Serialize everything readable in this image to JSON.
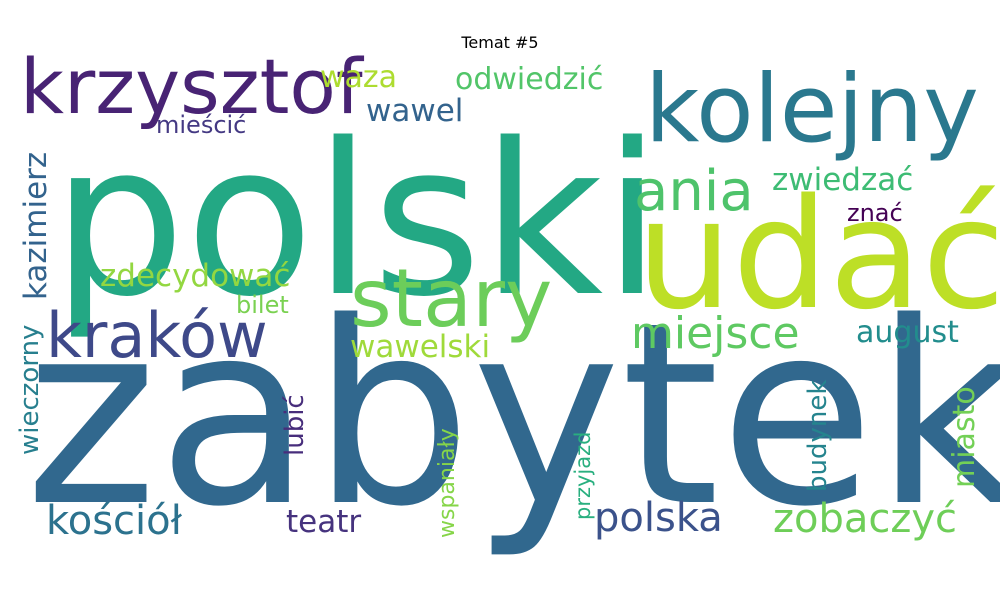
{
  "chart_data": {
    "type": "wordcloud",
    "title": "Temat #5",
    "words": [
      {
        "text": "zabytek",
        "weight": 1.0,
        "color": "#31688e"
      },
      {
        "text": "polski",
        "weight": 0.95,
        "color": "#23a884"
      },
      {
        "text": "udać",
        "weight": 0.82,
        "color": "#bddf26"
      },
      {
        "text": "kolejny",
        "weight": 0.55,
        "color": "#2a788e"
      },
      {
        "text": "krzysztof",
        "weight": 0.48,
        "color": "#482374"
      },
      {
        "text": "stary",
        "weight": 0.52,
        "color": "#6ccd5a"
      },
      {
        "text": "kraków",
        "weight": 0.42,
        "color": "#3e4989"
      },
      {
        "text": "ania",
        "weight": 0.33,
        "color": "#4ec36b"
      },
      {
        "text": "miejsce",
        "weight": 0.33,
        "color": "#5ec962"
      },
      {
        "text": "zobaczyć",
        "weight": 0.28,
        "color": "#6ece58"
      },
      {
        "text": "polska",
        "weight": 0.28,
        "color": "#3b528b"
      },
      {
        "text": "kościół",
        "weight": 0.28,
        "color": "#2c728e"
      },
      {
        "text": "odwiedzić",
        "weight": 0.22,
        "color": "#52c569"
      },
      {
        "text": "waza",
        "weight": 0.22,
        "color": "#addc30"
      },
      {
        "text": "wawel",
        "weight": 0.22,
        "color": "#33638d"
      },
      {
        "text": "zwiedzać",
        "weight": 0.22,
        "color": "#3dbc74"
      },
      {
        "text": "august",
        "weight": 0.22,
        "color": "#228d8d"
      },
      {
        "text": "teatr",
        "weight": 0.22,
        "color": "#46337e"
      },
      {
        "text": "wawelski",
        "weight": 0.22,
        "color": "#9fda3a"
      },
      {
        "text": "zdecydować",
        "weight": 0.22,
        "color": "#93d741"
      },
      {
        "text": "kazimierz",
        "weight": 0.22,
        "color": "#33638d"
      },
      {
        "text": "miasto",
        "weight": 0.2,
        "color": "#73d056"
      },
      {
        "text": "mieścić",
        "weight": 0.18,
        "color": "#443983"
      },
      {
        "text": "znać",
        "weight": 0.16,
        "color": "#440154"
      },
      {
        "text": "bilet",
        "weight": 0.16,
        "color": "#7ad151"
      },
      {
        "text": "wieczorny",
        "weight": 0.18,
        "color": "#277f8e"
      },
      {
        "text": "lubić",
        "weight": 0.18,
        "color": "#472d7b"
      },
      {
        "text": "wspaniały",
        "weight": 0.16,
        "color": "#86d549"
      },
      {
        "text": "przyjazd",
        "weight": 0.16,
        "color": "#29af7f"
      },
      {
        "text": "budynek",
        "weight": 0.18,
        "color": "#25848e"
      }
    ]
  }
}
